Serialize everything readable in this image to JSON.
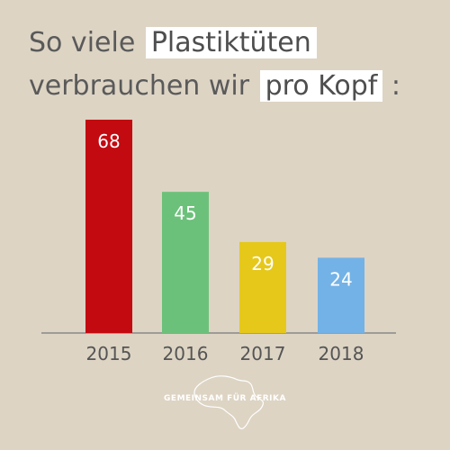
{
  "title": {
    "line1_pre": "So viele",
    "line1_hl": "Plastiktüten",
    "line2_pre": "verbrauchen wir",
    "line2_hl": "pro Kopf",
    "line2_post": ":"
  },
  "logo_text": "GEMEINSAM FÜR AFRIKA",
  "chart_data": {
    "type": "bar",
    "categories": [
      "2015",
      "2016",
      "2017",
      "2018"
    ],
    "values": [
      68,
      45,
      29,
      24
    ],
    "colors": [
      "#c20a10",
      "#6cc17a",
      "#e6c81a",
      "#73b2e6"
    ],
    "ylim": [
      0,
      68
    ],
    "grid": false,
    "legend": "none"
  }
}
